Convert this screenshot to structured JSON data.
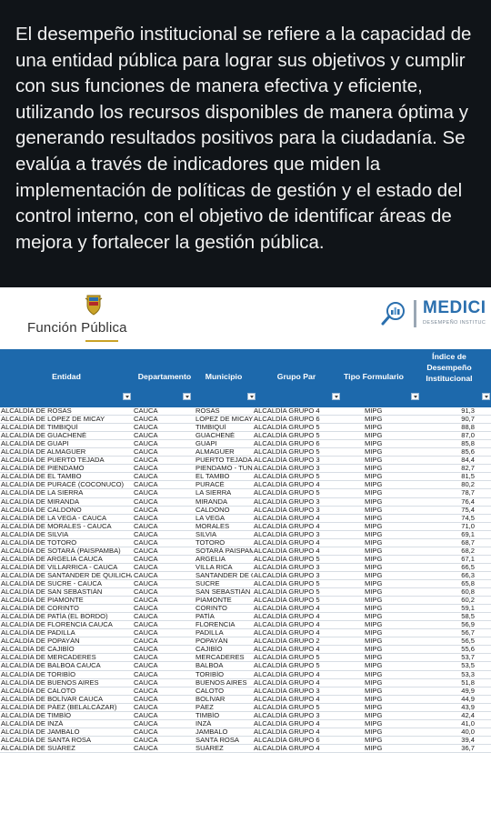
{
  "intro_text": "El desempeño institucional se refiere a la capacidad de una entidad pública para lograr sus objetivos y cumplir con sus funciones de manera efectiva y eficiente, utilizando los recursos disponibles de manera óptima y generando resultados positivos para la ciudadanía. Se evalúa a través de indicadores que miden la implementación de políticas de gestión y el estado del control interno, con el objetivo de identificar áreas de mejora y fortalecer la gestión pública.",
  "header_left": {
    "brand": "Función Pública",
    "icon": "colombia-shield-icon"
  },
  "header_right": {
    "title": "MEDICI",
    "subtitle": "DESEMPEÑO INSTITUC",
    "icon": "magnifier-chart-icon"
  },
  "table": {
    "columns": [
      "Entidad",
      "Departamento",
      "Municipio",
      "Grupo Par",
      "Tipo Formulario",
      "Índice de Desempeño Institucional"
    ],
    "header_color": "#1d69ac",
    "rows": [
      [
        "ALCALDÍA DE ROSAS",
        "CAUCA",
        "ROSAS",
        "ALCALDÍA GRUPO 4",
        "MIPG",
        "91,3"
      ],
      [
        "ALCALDÍA DE LÓPEZ DE MICAY",
        "CAUCA",
        "LÓPEZ DE MICAY",
        "ALCALDÍA GRUPO 6",
        "MIPG",
        "90,7"
      ],
      [
        "ALCALDÍA DE TIMBIQUÍ",
        "CAUCA",
        "TIMBIQUÍ",
        "ALCALDÍA GRUPO 5",
        "MIPG",
        "88,8"
      ],
      [
        "ALCALDÍA DE GUACHENÉ",
        "CAUCA",
        "GUACHENÉ",
        "ALCALDÍA GRUPO 5",
        "MIPG",
        "87,0"
      ],
      [
        "ALCALDÍA DE GUAPI",
        "CAUCA",
        "GUAPI",
        "ALCALDÍA GRUPO 6",
        "MIPG",
        "85,8"
      ],
      [
        "ALCALDÍA DE ALMAGUER",
        "CAUCA",
        "ALMAGUER",
        "ALCALDÍA GRUPO 5",
        "MIPG",
        "85,6"
      ],
      [
        "ALCALDÍA DE PUERTO TEJADA",
        "CAUCA",
        "PUERTO TEJADA",
        "ALCALDÍA GRUPO 3",
        "MIPG",
        "84,4"
      ],
      [
        "ALCALDÍA DE PIENDAMÓ",
        "CAUCA",
        "PIENDAMÓ - TUNÍA",
        "ALCALDÍA GRUPO 3",
        "MIPG",
        "82,7"
      ],
      [
        "ALCALDÍA DE EL TAMBO",
        "CAUCA",
        "EL TAMBO",
        "ALCALDÍA GRUPO 5",
        "MIPG",
        "81,5"
      ],
      [
        "ALCALDÍA DE PURACÉ (COCONUCO)",
        "CAUCA",
        "PURACÉ",
        "ALCALDÍA GRUPO 4",
        "MIPG",
        "80,2"
      ],
      [
        "ALCALDÍA DE LA SIERRA",
        "CAUCA",
        "LA SIERRA",
        "ALCALDÍA GRUPO 5",
        "MIPG",
        "78,7"
      ],
      [
        "ALCALDÍA DE MIRANDA",
        "CAUCA",
        "MIRANDA",
        "ALCALDÍA GRUPO 3",
        "MIPG",
        "76,4"
      ],
      [
        "ALCALDÍA DE CALDONO",
        "CAUCA",
        "CALDONO",
        "ALCALDÍA GRUPO 3",
        "MIPG",
        "75,4"
      ],
      [
        "ALCALDÍA DE LA VEGA - CAUCA",
        "CAUCA",
        "LA VEGA",
        "ALCALDÍA GRUPO 4",
        "MIPG",
        "74,5"
      ],
      [
        "ALCALDÍA DE MORALES - CAUCA",
        "CAUCA",
        "MORALES",
        "ALCALDÍA GRUPO 4",
        "MIPG",
        "71,0"
      ],
      [
        "ALCALDÍA DE SILVIA",
        "CAUCA",
        "SILVIA",
        "ALCALDÍA GRUPO 3",
        "MIPG",
        "69,1"
      ],
      [
        "ALCALDÍA DE TOTORÓ",
        "CAUCA",
        "TOTORÓ",
        "ALCALDÍA GRUPO 4",
        "MIPG",
        "68,7"
      ],
      [
        "ALCALDÍA DE SOTARÁ (PAISPAMBA)",
        "CAUCA",
        "SOTARÁ PAISPAMBA",
        "ALCALDÍA GRUPO 4",
        "MIPG",
        "68,2"
      ],
      [
        "ALCALDÍA DE ARGELIA CAUCA",
        "CAUCA",
        "ARGELIA",
        "ALCALDÍA GRUPO 5",
        "MIPG",
        "67,1"
      ],
      [
        "ALCALDÍA DE VILLARRICA - CAUCA",
        "CAUCA",
        "VILLA RICA",
        "ALCALDÍA GRUPO 3",
        "MIPG",
        "66,5"
      ],
      [
        "ALCALDÍA DE SANTANDER DE QUILICHAO",
        "CAUCA",
        "SANTANDER DE QUILICHAO",
        "ALCALDÍA GRUPO 3",
        "MIPG",
        "66,3"
      ],
      [
        "ALCALDÍA DE SUCRE - CAUCA",
        "CAUCA",
        "SUCRE",
        "ALCALDÍA GRUPO 5",
        "MIPG",
        "65,8"
      ],
      [
        "ALCALDÍA DE SAN SEBASTIÁN",
        "CAUCA",
        "SAN SEBASTIÁN",
        "ALCALDÍA GRUPO 5",
        "MIPG",
        "60,8"
      ],
      [
        "ALCALDÍA DE PIAMONTE",
        "CAUCA",
        "PIAMONTE",
        "ALCALDÍA GRUPO 5",
        "MIPG",
        "60,2"
      ],
      [
        "ALCALDÍA DE CORINTO",
        "CAUCA",
        "CORINTO",
        "ALCALDÍA GRUPO 4",
        "MIPG",
        "59,1"
      ],
      [
        "ALCALDÍA DE PATÍA (EL BORDO)",
        "CAUCA",
        "PATÍA",
        "ALCALDÍA GRUPO 4",
        "MIPG",
        "58,5"
      ],
      [
        "ALCALDÍA DE FLORENCIA CAUCA",
        "CAUCA",
        "FLORENCIA",
        "ALCALDÍA GRUPO 4",
        "MIPG",
        "56,9"
      ],
      [
        "ALCALDÍA DE PADILLA",
        "CAUCA",
        "PADILLA",
        "ALCALDÍA GRUPO 4",
        "MIPG",
        "56,7"
      ],
      [
        "ALCALDÍA DE POPAYÁN",
        "CAUCA",
        "POPAYÁN",
        "ALCALDÍA GRUPO 2",
        "MIPG",
        "56,5"
      ],
      [
        "ALCALDÍA DE CAJIBÍO",
        "CAUCA",
        "CAJIBÍO",
        "ALCALDÍA GRUPO 4",
        "MIPG",
        "55,6"
      ],
      [
        "ALCALDÍA DE MERCADERES",
        "CAUCA",
        "MERCADERES",
        "ALCALDÍA GRUPO 5",
        "MIPG",
        "53,7"
      ],
      [
        "ALCALDÍA DE BALBOA CAUCA",
        "CAUCA",
        "BALBOA",
        "ALCALDÍA GRUPO 5",
        "MIPG",
        "53,5"
      ],
      [
        "ALCALDÍA DE TORIBÍO",
        "CAUCA",
        "TORIBÍO",
        "ALCALDÍA GRUPO 4",
        "MIPG",
        "53,3"
      ],
      [
        "ALCALDÍA DE BUENOS AIRES",
        "CAUCA",
        "BUENOS AIRES",
        "ALCALDÍA GRUPO 4",
        "MIPG",
        "51,8"
      ],
      [
        "ALCALDÍA DE CALOTO",
        "CAUCA",
        "CALOTO",
        "ALCALDÍA GRUPO 3",
        "MIPG",
        "49,9"
      ],
      [
        "ALCALDÍA DE BOLÍVAR CAUCA",
        "CAUCA",
        "BOLÍVAR",
        "ALCALDÍA GRUPO 4",
        "MIPG",
        "44,9"
      ],
      [
        "ALCALDÍA DE PÁEZ (BELALCÁZAR)",
        "CAUCA",
        "PÁEZ",
        "ALCALDÍA GRUPO 5",
        "MIPG",
        "43,9"
      ],
      [
        "ALCALDÍA DE TIMBÍO",
        "CAUCA",
        "TIMBÍO",
        "ALCALDÍA GRUPO 3",
        "MIPG",
        "42,4"
      ],
      [
        "ALCALDÍA DE INZÁ",
        "CAUCA",
        "INZÁ",
        "ALCALDÍA GRUPO 4",
        "MIPG",
        "41,0"
      ],
      [
        "ALCALDÍA DE JAMBALÓ",
        "CAUCA",
        "JAMBALÓ",
        "ALCALDÍA GRUPO 4",
        "MIPG",
        "40,0"
      ],
      [
        "ALCALDÍA DE SANTA ROSA",
        "CAUCA",
        "SANTA ROSA",
        "ALCALDÍA GRUPO 6",
        "MIPG",
        "39,4"
      ],
      [
        "ALCALDÍA DE SUÁREZ",
        "CAUCA",
        "SUÁREZ",
        "ALCALDÍA GRUPO 4",
        "MIPG",
        "36,7"
      ]
    ]
  }
}
